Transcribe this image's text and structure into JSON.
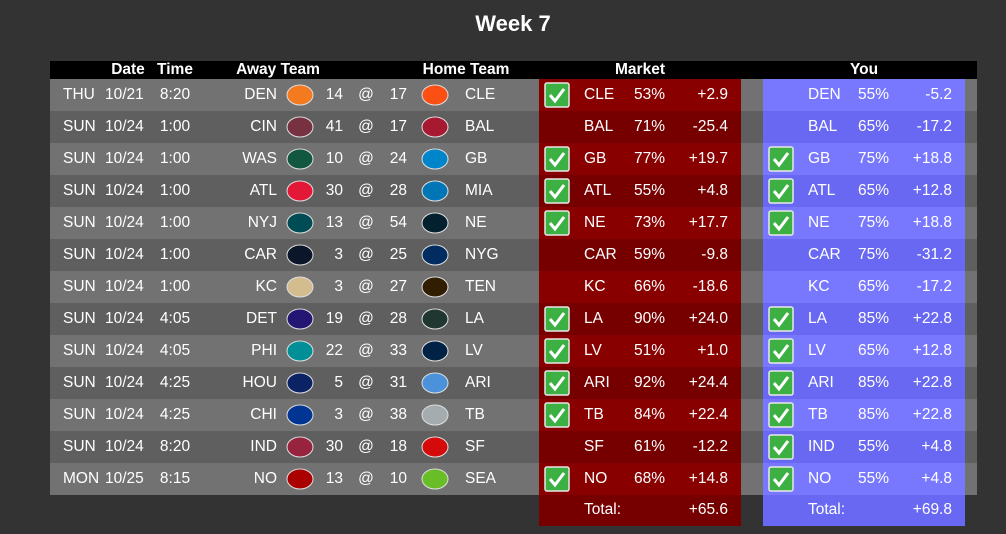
{
  "title": "Week 7",
  "header": {
    "date": "Date",
    "time": "Time",
    "away": "Away Team",
    "home": "Home Team",
    "market": "Market",
    "you": "You"
  },
  "rows": [
    {
      "day": "THU",
      "date": "10/21",
      "time": "8:20",
      "away": "DEN",
      "away_score": 14,
      "sep": "@",
      "home_score": 17,
      "home": "CLE",
      "market": {
        "win": true,
        "pick": "CLE",
        "pct": "53%",
        "diff": "+2.9"
      },
      "you": {
        "win": false,
        "pick": "DEN",
        "pct": "55%",
        "diff": "-5.2"
      }
    },
    {
      "day": "SUN",
      "date": "10/24",
      "time": "1:00",
      "away": "CIN",
      "away_score": 41,
      "sep": "@",
      "home_score": 17,
      "home": "BAL",
      "market": {
        "win": false,
        "pick": "BAL",
        "pct": "71%",
        "diff": "-25.4"
      },
      "you": {
        "win": false,
        "pick": "BAL",
        "pct": "65%",
        "diff": "-17.2"
      }
    },
    {
      "day": "SUN",
      "date": "10/24",
      "time": "1:00",
      "away": "WAS",
      "away_score": 10,
      "sep": "@",
      "home_score": 24,
      "home": "GB",
      "market": {
        "win": true,
        "pick": "GB",
        "pct": "77%",
        "diff": "+19.7"
      },
      "you": {
        "win": true,
        "pick": "GB",
        "pct": "75%",
        "diff": "+18.8"
      }
    },
    {
      "day": "SUN",
      "date": "10/24",
      "time": "1:00",
      "away": "ATL",
      "away_score": 30,
      "sep": "@",
      "home_score": 28,
      "home": "MIA",
      "market": {
        "win": true,
        "pick": "ATL",
        "pct": "55%",
        "diff": "+4.8"
      },
      "you": {
        "win": true,
        "pick": "ATL",
        "pct": "65%",
        "diff": "+12.8"
      }
    },
    {
      "day": "SUN",
      "date": "10/24",
      "time": "1:00",
      "away": "NYJ",
      "away_score": 13,
      "sep": "@",
      "home_score": 54,
      "home": "NE",
      "market": {
        "win": true,
        "pick": "NE",
        "pct": "73%",
        "diff": "+17.7"
      },
      "you": {
        "win": true,
        "pick": "NE",
        "pct": "75%",
        "diff": "+18.8"
      }
    },
    {
      "day": "SUN",
      "date": "10/24",
      "time": "1:00",
      "away": "CAR",
      "away_score": 3,
      "sep": "@",
      "home_score": 25,
      "home": "NYG",
      "market": {
        "win": false,
        "pick": "CAR",
        "pct": "59%",
        "diff": "-9.8"
      },
      "you": {
        "win": false,
        "pick": "CAR",
        "pct": "75%",
        "diff": "-31.2"
      }
    },
    {
      "day": "SUN",
      "date": "10/24",
      "time": "1:00",
      "away": "KC",
      "away_score": 3,
      "sep": "@",
      "home_score": 27,
      "home": "TEN",
      "market": {
        "win": false,
        "pick": "KC",
        "pct": "66%",
        "diff": "-18.6"
      },
      "you": {
        "win": false,
        "pick": "KC",
        "pct": "65%",
        "diff": "-17.2"
      }
    },
    {
      "day": "SUN",
      "date": "10/24",
      "time": "4:05",
      "away": "DET",
      "away_score": 19,
      "sep": "@",
      "home_score": 28,
      "home": "LA",
      "market": {
        "win": true,
        "pick": "LA",
        "pct": "90%",
        "diff": "+24.0"
      },
      "you": {
        "win": true,
        "pick": "LA",
        "pct": "85%",
        "diff": "+22.8"
      }
    },
    {
      "day": "SUN",
      "date": "10/24",
      "time": "4:05",
      "away": "PHI",
      "away_score": 22,
      "sep": "@",
      "home_score": 33,
      "home": "LV",
      "market": {
        "win": true,
        "pick": "LV",
        "pct": "51%",
        "diff": "+1.0"
      },
      "you": {
        "win": true,
        "pick": "LV",
        "pct": "65%",
        "diff": "+12.8"
      }
    },
    {
      "day": "SUN",
      "date": "10/24",
      "time": "4:25",
      "away": "HOU",
      "away_score": 5,
      "sep": "@",
      "home_score": 31,
      "home": "ARI",
      "market": {
        "win": true,
        "pick": "ARI",
        "pct": "92%",
        "diff": "+24.4"
      },
      "you": {
        "win": true,
        "pick": "ARI",
        "pct": "85%",
        "diff": "+22.8"
      }
    },
    {
      "day": "SUN",
      "date": "10/24",
      "time": "4:25",
      "away": "CHI",
      "away_score": 3,
      "sep": "@",
      "home_score": 38,
      "home": "TB",
      "market": {
        "win": true,
        "pick": "TB",
        "pct": "84%",
        "diff": "+22.4"
      },
      "you": {
        "win": true,
        "pick": "TB",
        "pct": "85%",
        "diff": "+22.8"
      }
    },
    {
      "day": "SUN",
      "date": "10/24",
      "time": "8:20",
      "away": "IND",
      "away_score": 30,
      "sep": "@",
      "home_score": 18,
      "home": "SF",
      "market": {
        "win": false,
        "pick": "SF",
        "pct": "61%",
        "diff": "-12.2"
      },
      "you": {
        "win": true,
        "pick": "IND",
        "pct": "55%",
        "diff": "+4.8"
      }
    },
    {
      "day": "MON",
      "date": "10/25",
      "time": "8:15",
      "away": "NO",
      "away_score": 13,
      "sep": "@",
      "home_score": 10,
      "home": "SEA",
      "market": {
        "win": true,
        "pick": "NO",
        "pct": "68%",
        "diff": "+14.8"
      },
      "you": {
        "win": true,
        "pick": "NO",
        "pct": "55%",
        "diff": "+4.8"
      }
    }
  ],
  "totals": {
    "market": {
      "label": "Total:",
      "value": "+65.6"
    },
    "you": {
      "label": "Total:",
      "value": "+69.8"
    }
  }
}
